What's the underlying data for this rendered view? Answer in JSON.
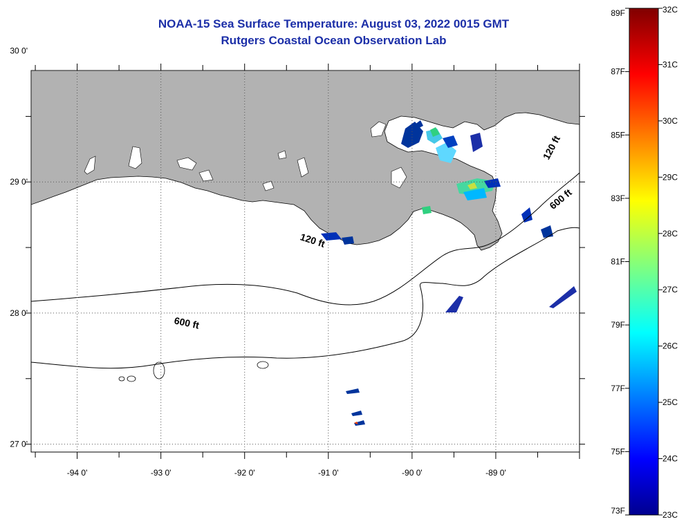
{
  "title": "NOAA-15 Sea Surface Temperature:  August 03, 2022 0015 GMT",
  "subtitle": "Rutgers Coastal Ocean Observation Lab",
  "map": {
    "lon_range": [
      -94.55,
      -88.0
    ],
    "lat_range": [
      26.94,
      29.85
    ],
    "lon_ticks": [
      {
        "value": -94,
        "label": "-94 0'"
      },
      {
        "value": -93,
        "label": "-93 0'"
      },
      {
        "value": -92,
        "label": "-92 0'"
      },
      {
        "value": -91,
        "label": "-91 0'"
      },
      {
        "value": -90,
        "label": "-90 0'"
      },
      {
        "value": -89,
        "label": "-89 0'"
      }
    ],
    "lat_ticks": [
      {
        "value": 30,
        "label": "30 0'"
      },
      {
        "value": 29,
        "label": "29 0'"
      },
      {
        "value": 28,
        "label": "28 0'"
      },
      {
        "value": 27,
        "label": "27 0'"
      }
    ],
    "contour_labels": [
      {
        "text": "120 ft",
        "lon": -91.2,
        "lat": 28.53
      },
      {
        "text": "600 ft",
        "lon": -92.7,
        "lat": 27.9
      },
      {
        "text": "120 ft",
        "lon": -88.3,
        "lat": 29.25
      },
      {
        "text": "600 ft",
        "lon": -88.2,
        "lat": 28.85
      }
    ],
    "colors": {
      "land": "#b2b2b2",
      "ocean": "#ffffff",
      "title": "#1c2fa8"
    }
  },
  "colorbar": {
    "f_labels": [
      "89F",
      "87F",
      "85F",
      "83F",
      "81F",
      "79F",
      "77F",
      "75F",
      "73F"
    ],
    "c_labels": [
      "32C",
      "31C",
      "30C",
      "29C",
      "28C",
      "27C",
      "26C",
      "25C",
      "24C",
      "23C"
    ],
    "range_c": [
      23,
      32
    ]
  }
}
